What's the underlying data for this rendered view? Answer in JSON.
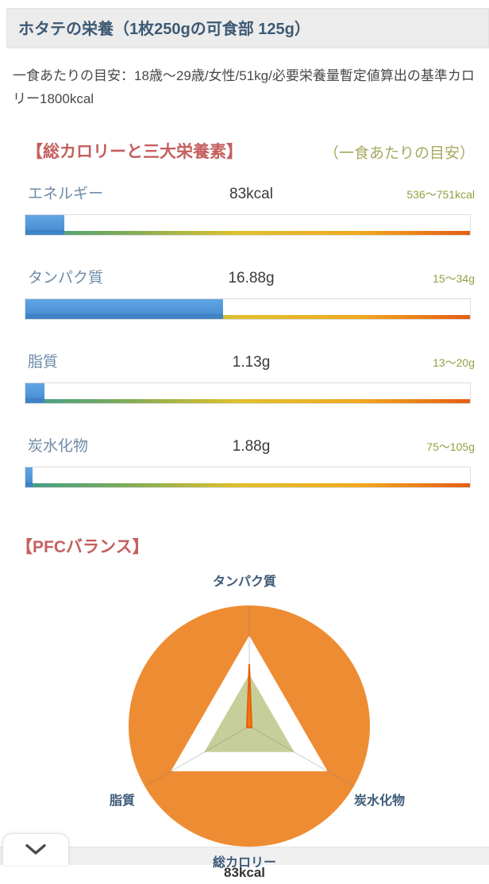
{
  "header": {
    "title": "ホタテの栄養（1枚250gの可食部 125g）"
  },
  "intro": {
    "text": "一食あたりの目安：18歳〜29歳/女性/51kg/必要栄養量暫定値算出の基準カロリー1800kcal"
  },
  "colors": {
    "section_title_red": "#c4605f",
    "note_olive": "#a6aa60",
    "label_blue": "#6e8ba8",
    "range_green": "#93a043",
    "bar_fill_blue": "#4a90d4",
    "bar_gradient": [
      "#3f9e8c",
      "#7cab58",
      "#dfc02d",
      "#f0a91f",
      "#e45d15"
    ],
    "radar_circle_orange": "#ee8c33",
    "radar_ideal_green": "#c6cf9a",
    "radar_spike_orange": "#f1780f",
    "radar_label_blue": "#3d5a78"
  },
  "chart_data": [
    {
      "type": "bar",
      "title": "【総カロリーと三大栄養素】",
      "note": "（一食あたりの目安）",
      "rows": [
        {
          "label": "エネルギー",
          "value": "83kcal",
          "range": "536〜751kcal",
          "fill_percent": 8.8
        },
        {
          "label": "タンパク質",
          "value": "16.88g",
          "range": "15〜34g",
          "fill_percent": 44.5
        },
        {
          "label": "脂質",
          "value": "1.13g",
          "range": "13〜20g",
          "fill_percent": 4.2
        },
        {
          "label": "炭水化物",
          "value": "1.88g",
          "range": "75〜105g",
          "fill_percent": 1.6
        }
      ]
    },
    {
      "type": "radar",
      "title": "【PFCバランス】",
      "axes": [
        "タンパク質",
        "炭水化物",
        "脂質"
      ],
      "values_percent": [
        68,
        3,
        3
      ],
      "ideal_percent": 58,
      "center_label": "総カロリー",
      "center_value": "83kcal"
    }
  ],
  "footer": {
    "collapse_icon": "chevron-down"
  }
}
